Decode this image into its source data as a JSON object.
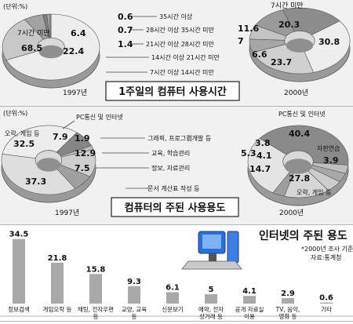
{
  "chart_data": [
    {
      "type": "pie",
      "title": "1주일의 컴퓨터 사용시간",
      "unit": "(단위:%)",
      "categories": [
        "7시간 미만",
        "7시간 이상 14시간 미만",
        "14시간 이상 21시간 미만",
        "21시간 이상 28시간 미만",
        "28시간 이상 35시간 미만",
        "35시간 이상"
      ],
      "series": [
        {
          "name": "1997년",
          "values": [
            68.5,
            22.4,
            6.4,
            1.4,
            0.7,
            0.6
          ]
        },
        {
          "name": "2000년",
          "values": [
            20.3,
            30.8,
            23.7,
            6.6,
            7.0,
            11.6
          ]
        }
      ]
    },
    {
      "type": "pie",
      "title": "컴퓨터의 주된 사용용도",
      "unit": "(단위:%)",
      "categories": [
        "오락, 게임 등",
        "PC통신 및 인터넷",
        "그래픽, 프로그램개발 등",
        "교육, 학습관리",
        "정보, 자료관리",
        "문서 계산표 작성 등",
        "자판연습"
      ],
      "series": [
        {
          "name": "1997년",
          "values": [
            32.5,
            7.9,
            1.9,
            12.9,
            7.5,
            37.3,
            null
          ]
        },
        {
          "name": "2000년",
          "values": [
            27.8,
            40.4,
            3.8,
            4.1,
            5.3,
            14.7,
            3.9
          ]
        }
      ]
    },
    {
      "type": "bar",
      "title": "인터넷의 주된 용도",
      "note": "*2000년 조사 기준",
      "source": "자료:통계청",
      "categories": [
        "정보검색",
        "게임오락 등",
        "채팅, 전자우편 등",
        "교양, 교육 등",
        "신문보기",
        "예약, 전자 상거래 등",
        "공개 자료실 이용",
        "TV, 음악, 영화 등",
        "기타"
      ],
      "values": [
        34.5,
        21.8,
        15.8,
        9.3,
        6.1,
        5.0,
        4.1,
        2.9,
        0.6
      ],
      "ylim": [
        0,
        36
      ]
    }
  ],
  "icons": [
    "computer-icon"
  ],
  "colors": {
    "slice_dark": "#8a8a8a",
    "slice_mid": "#c4c4c4",
    "slice_light": "#ececec",
    "bar": "#a9a9a9"
  }
}
